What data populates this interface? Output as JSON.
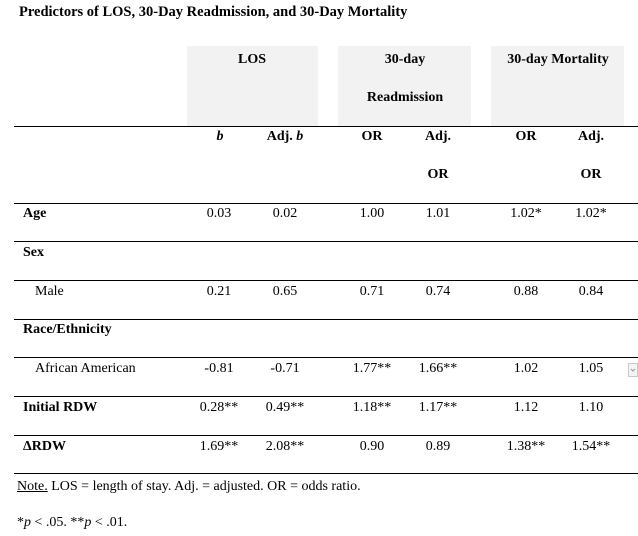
{
  "title": "Predictors of LOS, 30-Day Readmission, and 30-Day Mortality",
  "groups": {
    "los": "LOS",
    "readmit_line1": "30-day",
    "readmit_line2": "Readmission",
    "mortality": "30-day Mortality"
  },
  "subheaders": {
    "b": "b",
    "adj_b_prefix": "Adj. ",
    "adj_b_italic": "b",
    "or1": "OR",
    "adj_or1_line1": "Adj.",
    "adj_or1_line2": "OR",
    "or2": "OR",
    "adj_or2_line1": "Adj.",
    "adj_or2_line2": "OR"
  },
  "rows": [
    {
      "label": "Age",
      "bold": true,
      "values": [
        "0.03",
        "0.02",
        "1.00",
        "1.01",
        "1.02*",
        "1.02*"
      ]
    },
    {
      "label": "Sex",
      "bold": true,
      "values": [
        "",
        "",
        "",
        "",
        "",
        ""
      ]
    },
    {
      "label": "Male",
      "bold": false,
      "values": [
        "0.21",
        "0.65",
        "0.71",
        "0.74",
        "0.88",
        "0.84"
      ]
    },
    {
      "label": "Race/Ethnicity",
      "bold": true,
      "values": [
        "",
        "",
        "",
        "",
        "",
        ""
      ]
    },
    {
      "label": "African American",
      "bold": false,
      "values": [
        "-0.81",
        "-0.71",
        "1.77**",
        "1.66**",
        "1.02",
        "1.05"
      ]
    },
    {
      "label": "Initial RDW",
      "bold": true,
      "values": [
        "0.28**",
        "0.49**",
        "1.18**",
        "1.17**",
        "1.12",
        "1.10"
      ]
    },
    {
      "label": "ΔRDW",
      "bold": true,
      "values": [
        "1.69**",
        "2.08**",
        "0.90",
        "0.89",
        "1.38**",
        "1.54**"
      ]
    }
  ],
  "note": {
    "label": "Note.",
    "text": " LOS = length of stay. Adj. = adjusted. OR = odds ratio."
  },
  "significance": {
    "p1_text": " < .05.  **",
    "p2_text": " < .01."
  }
}
